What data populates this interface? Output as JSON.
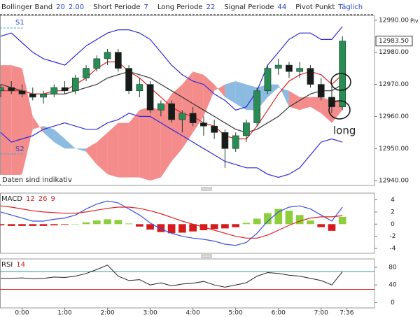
{
  "chart_data": [
    {
      "type": "candlestick",
      "indicators": [
        {
          "label": "Bollinger Band",
          "params": [
            "20",
            "2.00"
          ]
        },
        {
          "label": "Short Periode",
          "params": [
            "7"
          ]
        },
        {
          "label": "Long Periode",
          "params": [
            "22"
          ]
        },
        {
          "label": "Signal Periode",
          "params": [
            "44"
          ]
        },
        {
          "label": "Pivot Punkt",
          "params": [
            "Täglich"
          ]
        }
      ],
      "pivot_label": "Piv",
      "s1_label": "S1",
      "s2_label": "S2",
      "notice": "Daten sind indikativ",
      "signal_label": "long",
      "x": [
        -30,
        -15,
        0,
        15,
        30,
        45,
        60,
        75,
        90,
        105,
        120,
        135,
        150,
        165,
        180,
        195,
        210,
        225,
        240,
        255,
        270,
        285,
        300,
        315,
        330,
        345,
        360,
        375,
        390,
        405,
        420,
        435,
        450
      ],
      "open": [
        12968,
        12969,
        12968,
        12967,
        12966,
        12967,
        12969,
        12968,
        12972,
        12975,
        12978,
        12980,
        12975,
        12968,
        12970,
        12962,
        12964,
        12959,
        12961,
        12958,
        12957,
        12955,
        12950,
        12954,
        12958,
        12968,
        12975,
        12976,
        12974,
        12975,
        12970,
        12966,
        12963
      ],
      "high": [
        12970,
        12971,
        12970,
        12969,
        12968,
        12970,
        12971,
        12973,
        12976,
        12979,
        12981,
        12981,
        12976,
        12972,
        12971,
        12965,
        12965,
        12962,
        12963,
        12960,
        12959,
        12956,
        12955,
        12959,
        12969,
        12976,
        12978,
        12977,
        12977,
        12976,
        12972,
        12970,
        12985
      ],
      "low": [
        12966,
        12967,
        12966,
        12965,
        12964,
        12966,
        12967,
        12967,
        12971,
        12974,
        12976,
        12974,
        12967,
        12966,
        12961,
        12960,
        12958,
        12955,
        12957,
        12954,
        12953,
        12944,
        12949,
        12952,
        12957,
        12967,
        12973,
        12972,
        12972,
        12969,
        12965,
        12961,
        12962
      ],
      "close": [
        12969,
        12968,
        12967,
        12966,
        12967,
        12969,
        12968,
        12972,
        12975,
        12978,
        12980,
        12975,
        12968,
        12970,
        12962,
        12964,
        12959,
        12961,
        12958,
        12957,
        12955,
        12950,
        12954,
        12958,
        12968,
        12975,
        12976,
        12974,
        12975,
        12970,
        12966,
        12963,
        12983.5
      ],
      "up_color": "#2a8c55",
      "down_color": "#1a1a1a",
      "lines": [
        {
          "color": "#2b2bd6",
          "values": [
            12985,
            12986,
            12983,
            12980,
            12978,
            12977,
            12976,
            12979,
            12982,
            12984,
            12986,
            12987,
            12987,
            12986,
            12984,
            12980,
            12976,
            12973,
            12971,
            12970,
            12967,
            12965,
            12962,
            12963,
            12968,
            12976,
            12980,
            12984,
            12986,
            12986,
            12984,
            12984,
            12988
          ]
        },
        {
          "color": "#333333",
          "values": [
            12970,
            12969,
            12968,
            12967,
            12967,
            12967,
            12967,
            12968,
            12969,
            12970,
            12972,
            12973,
            12974,
            12973,
            12972,
            12970,
            12968,
            12966,
            12964,
            12962,
            12960,
            12958,
            12956,
            12955,
            12956,
            12958,
            12960,
            12963,
            12965,
            12967,
            12968,
            12968,
            12970
          ]
        },
        {
          "color": "#2b2bd6",
          "values": [
            12955,
            12952,
            12953,
            12954,
            12956,
            12957,
            12958,
            12957,
            12956,
            12956,
            12958,
            12959,
            12961,
            12960,
            12960,
            12958,
            12956,
            12954,
            12952,
            12950,
            12948,
            12946,
            12945,
            12944,
            12944,
            12942,
            12941,
            12942,
            12944,
            12948,
            12952,
            12953,
            12952
          ]
        },
        {
          "color": "#e02020",
          "values": [
            12968,
            12968,
            12968,
            12967,
            12967,
            12968,
            12968,
            12970,
            12972,
            12975,
            12977,
            12977,
            12974,
            12972,
            12969,
            12966,
            12963,
            12961,
            12960,
            12958,
            12957,
            12954,
            12953,
            12953,
            12957,
            12962,
            12967,
            12971,
            12973,
            12974,
            12973,
            12970,
            12973
          ]
        }
      ],
      "cloud": {
        "up_color": "#f48080",
        "down_color": "#7fb4de",
        "span_a": [
          12976,
          12976,
          12975,
          12960,
          12955,
          12952,
          12950,
          12950,
          12950,
          12952,
          12955,
          12958,
          12958,
          12962,
          12963,
          12962,
          12967,
          12970,
          12974,
          12973,
          12970,
          12966,
          12964,
          12962,
          12962,
          12966,
          12969,
          12968,
          12966,
          12966,
          12966,
          12965,
          12965
        ],
        "span_b": [
          12941,
          12941,
          12942,
          12956,
          12957,
          12956,
          12953,
          12950,
          12949,
          12945,
          12942,
          12941,
          12941,
          12941,
          12940,
          12941,
          12946,
          12950,
          12955,
          12960,
          12968,
          12970,
          12971,
          12970,
          12969,
          12970,
          12970,
          12963,
          12962,
          12963,
          12961,
          12958,
          12962
        ]
      },
      "last_price": {
        "value": 12983.5,
        "label": "12983.50"
      },
      "xlim": [
        -31,
        495
      ],
      "ylim": [
        12938.5,
        12991.5
      ],
      "yticks": [
        {
          "value": 12990,
          "label": "12990.00"
        },
        {
          "value": 12980,
          "label": "12980.00"
        },
        {
          "value": 12970,
          "label": "12970.00"
        },
        {
          "value": 12960,
          "label": "12960.00"
        },
        {
          "value": 12950,
          "label": "12950.00"
        },
        {
          "value": 12940,
          "label": "12940.00"
        }
      ]
    },
    {
      "type": "macd",
      "title": "MACD",
      "params": [
        "12",
        "26",
        "9"
      ],
      "x": [
        -30,
        -15,
        0,
        15,
        30,
        45,
        60,
        75,
        90,
        105,
        120,
        135,
        150,
        165,
        180,
        195,
        210,
        225,
        240,
        255,
        270,
        285,
        300,
        315,
        330,
        345,
        360,
        375,
        390,
        405,
        420,
        435,
        450
      ],
      "histogram": {
        "up_color": "#8ccf3a",
        "down_color": "#d41c1c",
        "values": [
          -0.2,
          -0.3,
          -0.3,
          -0.3,
          -0.3,
          -0.2,
          -0.1,
          0,
          0.3,
          0.6,
          0.8,
          0.7,
          0.1,
          -0.4,
          -0.9,
          -1.3,
          -1.5,
          -1.4,
          -1.2,
          -1,
          -0.8,
          -0.7,
          -0.5,
          0.2,
          0.9,
          1.8,
          2.5,
          2.2,
          1.5,
          0.6,
          -0.5,
          -1.1,
          1.2
        ]
      },
      "series": [
        {
          "color": "#3a4fe0",
          "values": [
            2,
            1.5,
            1,
            0.5,
            0.5,
            0.8,
            1,
            1.5,
            2.5,
            3.3,
            3.8,
            3.5,
            2.5,
            1.5,
            0.2,
            -0.8,
            -1.5,
            -2,
            -2.3,
            -2.5,
            -2.8,
            -3.3,
            -3.5,
            -3,
            -1.5,
            0.5,
            2,
            2.8,
            3,
            2.5,
            1.5,
            0.5,
            2.8
          ]
        },
        {
          "color": "#e02020",
          "values": [
            3,
            2.8,
            2.5,
            2.2,
            2,
            1.9,
            1.8,
            1.8,
            2,
            2.3,
            2.6,
            2.8,
            2.8,
            2.6,
            2.2,
            1.7,
            1.1,
            0.5,
            0,
            -0.5,
            -1,
            -1.5,
            -2,
            -2.3,
            -2.3,
            -1.8,
            -1,
            -0.2,
            0.5,
            1,
            1.2,
            1.2,
            1.4
          ]
        }
      ],
      "xlim": [
        -31,
        495
      ],
      "ylim": [
        -4.8,
        5.1
      ],
      "yticks": [
        4,
        2,
        0,
        -2,
        -4
      ]
    },
    {
      "type": "line",
      "title": "RSI",
      "params": [
        "14"
      ],
      "x": [
        -30,
        -15,
        0,
        15,
        30,
        45,
        60,
        75,
        90,
        105,
        120,
        135,
        150,
        165,
        180,
        195,
        210,
        225,
        240,
        255,
        270,
        285,
        300,
        315,
        330,
        345,
        360,
        375,
        390,
        405,
        420,
        435,
        450
      ],
      "color": "#222222",
      "values": [
        55,
        55,
        56,
        54,
        55,
        58,
        57,
        60,
        66,
        75,
        85,
        60,
        50,
        52,
        40,
        45,
        38,
        42,
        44,
        48,
        40,
        35,
        40,
        45,
        60,
        68,
        66,
        62,
        60,
        55,
        50,
        40,
        70
      ],
      "ref_lines": [
        {
          "value": 70,
          "color": "#2a9aa8"
        },
        {
          "value": 30,
          "color": "#d02020"
        }
      ],
      "xlim": [
        -31,
        495
      ],
      "ylim": [
        -12,
        99
      ],
      "yticks": [
        80,
        40,
        0
      ],
      "xticks": [
        {
          "value": 0,
          "label": "0:00"
        },
        {
          "value": 60,
          "label": "1:00"
        },
        {
          "value": 120,
          "label": "2:00"
        },
        {
          "value": 180,
          "label": "3:00"
        },
        {
          "value": 240,
          "label": "4:00"
        },
        {
          "value": 300,
          "label": "5:00"
        },
        {
          "value": 360,
          "label": "6:00"
        },
        {
          "value": 420,
          "label": "7:00"
        },
        {
          "value": 456,
          "label": "7:36"
        }
      ]
    }
  ]
}
